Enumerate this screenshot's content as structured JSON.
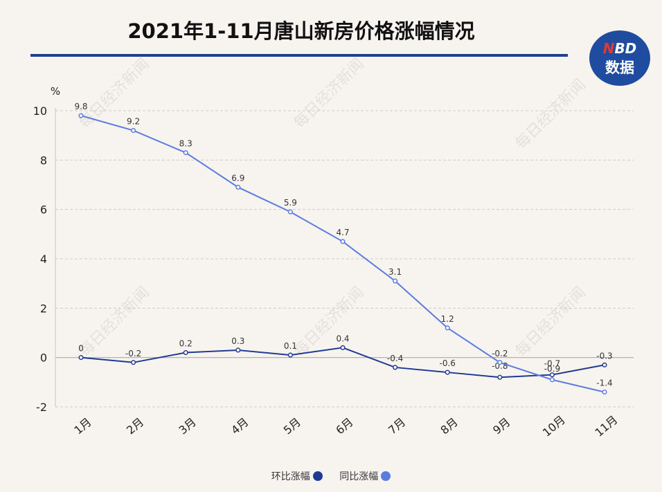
{
  "title": "2021年1-11月唐山新房价格涨幅情况",
  "logo": {
    "top_prefix": "N",
    "top_rest": "BD",
    "bottom": "数据"
  },
  "watermark": "每日经济新闻",
  "colors": {
    "mom": "#1f3a93",
    "yoy": "#5b7be0",
    "title_rule": "#1f3f8f",
    "logo_bg": "#1f4c9e"
  },
  "chart_data": {
    "type": "line",
    "ylabel": "%",
    "ylim": [
      -2,
      10
    ],
    "yticks": [
      -2,
      0,
      2,
      4,
      6,
      8,
      10
    ],
    "grid": true,
    "legend_position": "bottom",
    "categories": [
      "1月",
      "2月",
      "3月",
      "4月",
      "5月",
      "6月",
      "7月",
      "8月",
      "9月",
      "10月",
      "11月"
    ],
    "series": [
      {
        "name": "环比涨幅",
        "color": "#1f3a93",
        "values": [
          0,
          -0.2,
          0.2,
          0.3,
          0.1,
          0.4,
          -0.4,
          -0.6,
          -0.8,
          -0.7,
          -0.3
        ],
        "labels": [
          "0",
          "-0.2",
          "0.2",
          "0.3",
          "0.1",
          "0.4",
          "-0.4",
          "-0.6",
          "-0.8",
          "-0.7",
          "-0.3"
        ]
      },
      {
        "name": "同比涨幅",
        "color": "#5b7be0",
        "values": [
          9.8,
          9.2,
          8.3,
          6.9,
          5.9,
          4.7,
          3.1,
          1.2,
          -0.2,
          -0.9,
          -1.4
        ],
        "labels": [
          "9.8",
          "9.2",
          "8.3",
          "6.9",
          "5.9",
          "4.7",
          "3.1",
          "1.2",
          "-0.2",
          "-0.9",
          "-1.4"
        ]
      }
    ]
  }
}
